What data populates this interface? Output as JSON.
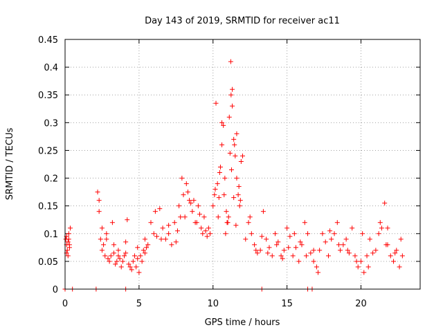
{
  "chart_data": {
    "type": "scatter",
    "title": "Day 143 of 2019, SRMTID for receiver ac11",
    "xlabel": "GPS time / hours",
    "ylabel": "SRMTID / TECUs",
    "xlim": [
      0,
      24
    ],
    "ylim": [
      0,
      0.45
    ],
    "xticks": [
      0,
      5,
      10,
      15,
      20
    ],
    "xtick_labels": [
      "0",
      "5",
      "10",
      "15",
      "20"
    ],
    "yticks": [
      0,
      0.05,
      0.1,
      0.15,
      0.2,
      0.25,
      0.3,
      0.35,
      0.4,
      0.45
    ],
    "ytick_labels": [
      "0",
      "0.05",
      "0.1",
      "0.15",
      "0.2",
      "0.25",
      "0.3",
      "0.35",
      "0.4",
      "0.45"
    ],
    "grid": true,
    "marker": "+",
    "color": "#ff0000",
    "series": [
      {
        "name": "SRMTID",
        "x": [
          0.05,
          0.1,
          0.15,
          0.2,
          0.25,
          0.3,
          0.35,
          0.1,
          0.2,
          0.3,
          0.1,
          0.25,
          2.2,
          2.3,
          2.4,
          2.5,
          2.6,
          2.7,
          2.8,
          2.9,
          3.0,
          3.1,
          3.2,
          3.3,
          3.4,
          3.5,
          3.6,
          3.7,
          3.8,
          3.9,
          4.0,
          4.1,
          4.2,
          4.3,
          4.4,
          4.5,
          4.6,
          4.7,
          4.8,
          4.9,
          5.0,
          5.1,
          5.2,
          5.3,
          5.4,
          5.5,
          2.3,
          2.5,
          2.8,
          3.3,
          3.6,
          4.1,
          4.9,
          5.4,
          5.6,
          5.8,
          6.0,
          6.2,
          6.4,
          6.6,
          6.8,
          7.0,
          7.2,
          7.4,
          7.6,
          7.8,
          8.0,
          8.2,
          8.4,
          8.6,
          8.8,
          9.0,
          9.2,
          9.4,
          9.6,
          9.8,
          6.1,
          6.5,
          7.0,
          7.5,
          7.9,
          8.1,
          8.5,
          8.9,
          9.3,
          9.7,
          7.7,
          8.3,
          8.7,
          9.1,
          9.5,
          10.0,
          10.1,
          10.2,
          10.3,
          10.4,
          10.5,
          10.6,
          10.7,
          10.8,
          10.9,
          11.0,
          11.1,
          11.2,
          11.3,
          11.4,
          11.5,
          11.6,
          11.7,
          11.8,
          11.9,
          12.0,
          10.15,
          10.45,
          10.6,
          10.75,
          10.95,
          11.05,
          11.15,
          11.22,
          11.3,
          11.45,
          11.6,
          11.75,
          11.85,
          10.35,
          10.85,
          11.25,
          11.4,
          11.55,
          12.2,
          12.4,
          12.6,
          12.8,
          13.0,
          13.2,
          13.4,
          13.6,
          13.8,
          14.0,
          14.2,
          14.4,
          14.6,
          14.8,
          15.0,
          15.2,
          15.4,
          15.6,
          15.8,
          16.0,
          16.2,
          16.4,
          16.6,
          16.8,
          12.5,
          12.9,
          13.3,
          13.7,
          14.3,
          14.7,
          15.1,
          15.5,
          15.9,
          16.3,
          16.8,
          17.0,
          17.2,
          17.4,
          17.6,
          17.8,
          18.0,
          18.2,
          18.4,
          18.6,
          18.8,
          19.0,
          19.2,
          19.4,
          19.6,
          19.8,
          20.0,
          20.2,
          20.4,
          20.6,
          20.8,
          21.0,
          21.2,
          21.4,
          21.6,
          21.8,
          22.0,
          22.2,
          22.4,
          22.6,
          22.8,
          17.1,
          17.9,
          18.5,
          19.1,
          19.7,
          20.1,
          20.5,
          21.3,
          21.7,
          21.8,
          22.3,
          22.7,
          0.0,
          0.5,
          2.1,
          4.1,
          13.3,
          16.4,
          16.7
        ],
        "y": [
          0.09,
          0.08,
          0.07,
          0.06,
          0.1,
          0.08,
          0.11,
          0.095,
          0.085,
          0.075,
          0.065,
          0.09,
          0.175,
          0.16,
          0.09,
          0.07,
          0.08,
          0.06,
          0.1,
          0.055,
          0.05,
          0.06,
          0.12,
          0.08,
          0.045,
          0.05,
          0.07,
          0.055,
          0.04,
          0.05,
          0.06,
          0.065,
          0.125,
          0.045,
          0.04,
          0.035,
          0.05,
          0.06,
          0.04,
          0.055,
          0.03,
          0.06,
          0.05,
          0.07,
          0.065,
          0.075,
          0.14,
          0.11,
          0.09,
          0.065,
          0.06,
          0.085,
          0.075,
          0.09,
          0.08,
          0.12,
          0.1,
          0.095,
          0.145,
          0.11,
          0.09,
          0.1,
          0.08,
          0.12,
          0.105,
          0.13,
          0.17,
          0.19,
          0.16,
          0.14,
          0.12,
          0.15,
          0.11,
          0.13,
          0.095,
          0.1,
          0.14,
          0.09,
          0.115,
          0.085,
          0.2,
          0.13,
          0.155,
          0.12,
          0.1,
          0.11,
          0.15,
          0.175,
          0.16,
          0.135,
          0.105,
          0.15,
          0.17,
          0.335,
          0.19,
          0.165,
          0.22,
          0.26,
          0.295,
          0.2,
          0.14,
          0.12,
          0.31,
          0.41,
          0.36,
          0.27,
          0.24,
          0.2,
          0.17,
          0.15,
          0.23,
          0.24,
          0.18,
          0.21,
          0.3,
          0.17,
          0.12,
          0.13,
          0.245,
          0.35,
          0.33,
          0.26,
          0.28,
          0.185,
          0.16,
          0.13,
          0.1,
          0.215,
          0.165,
          0.115,
          0.09,
          0.12,
          0.1,
          0.08,
          0.065,
          0.07,
          0.14,
          0.09,
          0.075,
          0.06,
          0.1,
          0.085,
          0.06,
          0.07,
          0.11,
          0.095,
          0.06,
          0.075,
          0.05,
          0.08,
          0.12,
          0.1,
          0.065,
          0.07,
          0.13,
          0.07,
          0.095,
          0.065,
          0.08,
          0.055,
          0.075,
          0.1,
          0.085,
          0.06,
          0.05,
          0.04,
          0.07,
          0.1,
          0.085,
          0.06,
          0.09,
          0.1,
          0.12,
          0.07,
          0.08,
          0.09,
          0.065,
          0.11,
          0.06,
          0.04,
          0.05,
          0.03,
          0.06,
          0.09,
          0.065,
          0.07,
          0.1,
          0.11,
          0.155,
          0.08,
          0.06,
          0.05,
          0.07,
          0.04,
          0.06,
          0.03,
          0.105,
          0.08,
          0.07,
          0.05,
          0.1,
          0.04,
          0.12,
          0.08,
          0.11,
          0.065,
          0.09,
          0.0,
          0.0,
          0.0,
          0.0,
          0.0,
          0.0,
          0.0
        ]
      }
    ]
  }
}
